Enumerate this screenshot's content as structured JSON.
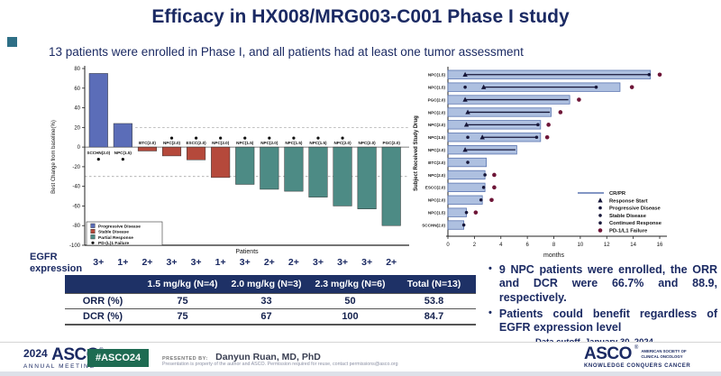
{
  "slide": {
    "title": "Efficacy in HX008/MRG003-C001 Phase I study",
    "subtitle": "13 patients were enrolled in Phase I, and all patients had at least one tumor assessment"
  },
  "colors": {
    "navy": "#1b2a63",
    "bar_progressive": "#5b6db8",
    "bar_stable": "#b5493b",
    "bar_partial": "#4d8b85",
    "swimmer_bar_fill": "#aec0e0",
    "swimmer_bar_stroke": "#5a74b0",
    "marker_dark": "#17173a",
    "marker_fail": "#6e1638",
    "table_header_bg": "#1e3166",
    "badge_green": "#1e6b52",
    "accent_square": "#2e6f86"
  },
  "chart_data": [
    {
      "type": "bar",
      "subtype": "waterfall",
      "title": "",
      "xlabel": "Patients",
      "ylabel": "Best Change from baseline(%)",
      "ylim": [
        -100,
        80
      ],
      "yticks": [
        80,
        60,
        40,
        20,
        0,
        -20,
        -40,
        -60,
        -80,
        -100
      ],
      "reference_lines": [
        20,
        -30
      ],
      "categories": [
        "SCCHN(2.0)",
        "NPC(1.5)",
        "BTC(2.0)",
        "NPC(2.0)",
        "ESCC(2.0)",
        "NPC(2.0)",
        "NPC(1.5)",
        "NPC(2.0)",
        "NPC(1.5)",
        "NPC(1.5)",
        "NPC(2.0)",
        "NPC(2.0)",
        "PGC(2.0)"
      ],
      "values": [
        75,
        24,
        -4,
        -9,
        -13,
        -31,
        -38,
        -43,
        -45,
        -51,
        -60,
        -63,
        -80
      ],
      "status": [
        "pd",
        "pd",
        "sd",
        "sd",
        "sd",
        "sd",
        "pr",
        "pr",
        "pr",
        "pr",
        "pr",
        "pr",
        "pr"
      ],
      "pdl1_dot": [
        "below",
        "below",
        null,
        "above",
        "above",
        "above",
        "above",
        "above",
        "above",
        "above",
        "above",
        null,
        null
      ],
      "legend": [
        {
          "swatch": "pd",
          "label": "Progressive Disease"
        },
        {
          "swatch": "sd",
          "label": "Stable Disease"
        },
        {
          "swatch": "pr",
          "label": "Partial Response"
        },
        {
          "swatch": "dot",
          "label": "PD-(L)1 Failure"
        }
      ],
      "egfr": {
        "label": "EGFR expression",
        "values": [
          "3+",
          "1+",
          "2+",
          "3+",
          "3+",
          "1+",
          "3+",
          "2+",
          "2+",
          "3+",
          "3+",
          "3+",
          "2+"
        ]
      }
    },
    {
      "type": "bar",
      "subtype": "swimmer",
      "title": "",
      "xlabel": "months",
      "ylabel": "Subject Received Study Drug",
      "xlim": [
        0,
        16
      ],
      "xticks": [
        0,
        2,
        4,
        6,
        8,
        10,
        12,
        14,
        16
      ],
      "rows": [
        {
          "label": "NPC(1.5)",
          "bar": 15.3,
          "line": [
            1.3,
            15.2
          ],
          "markers": [
            {
              "t": "start",
              "x": 1.3
            },
            {
              "t": "dot",
              "x": 15.2
            },
            {
              "t": "fail",
              "x": 16.0
            }
          ]
        },
        {
          "label": "NPC(1.5)",
          "bar": 13.0,
          "line": [
            2.7,
            11.2
          ],
          "markers": [
            {
              "t": "dot",
              "x": 1.3
            },
            {
              "t": "start",
              "x": 2.7
            },
            {
              "t": "dot",
              "x": 11.2
            },
            {
              "t": "fail",
              "x": 13.9
            }
          ]
        },
        {
          "label": "PGC(2.0)",
          "bar": 9.2,
          "line": [
            1.3,
            9.1
          ],
          "markers": [
            {
              "t": "start",
              "x": 1.3
            },
            {
              "t": "fail",
              "x": 9.9
            }
          ]
        },
        {
          "label": "NPC(2.0)",
          "bar": 7.8,
          "line": [
            1.5,
            7.7
          ],
          "markers": [
            {
              "t": "start",
              "x": 1.5
            },
            {
              "t": "fail",
              "x": 8.5
            }
          ]
        },
        {
          "label": "NPC(2.0)",
          "bar": 7.0,
          "line": [
            1.4,
            6.8
          ],
          "markers": [
            {
              "t": "start",
              "x": 1.4
            },
            {
              "t": "dot",
              "x": 6.8
            },
            {
              "t": "fail",
              "x": 7.6
            }
          ]
        },
        {
          "label": "NPC(1.5)",
          "bar": 7.0,
          "line": [
            2.6,
            6.7
          ],
          "markers": [
            {
              "t": "dot",
              "x": 1.5
            },
            {
              "t": "start",
              "x": 2.6
            },
            {
              "t": "dot",
              "x": 6.7
            },
            {
              "t": "fail",
              "x": 7.5
            }
          ]
        },
        {
          "label": "NPC(2.0)",
          "bar": 5.2,
          "line": [
            1.3,
            5.1
          ],
          "markers": [
            {
              "t": "start",
              "x": 1.3
            }
          ]
        },
        {
          "label": "BTC(2.0)",
          "bar": 2.9,
          "line": null,
          "markers": [
            {
              "t": "dot",
              "x": 1.5
            }
          ]
        },
        {
          "label": "NPC(2.0)",
          "bar": 2.8,
          "line": null,
          "markers": [
            {
              "t": "dot",
              "x": 2.8
            },
            {
              "t": "fail",
              "x": 3.5
            }
          ]
        },
        {
          "label": "ESCC(2.0)",
          "bar": 2.8,
          "line": null,
          "markers": [
            {
              "t": "dot",
              "x": 2.7
            },
            {
              "t": "fail",
              "x": 3.5
            }
          ]
        },
        {
          "label": "NPC(2.0)",
          "bar": 2.6,
          "line": null,
          "markers": [
            {
              "t": "dot",
              "x": 2.5
            },
            {
              "t": "fail",
              "x": 3.3
            }
          ]
        },
        {
          "label": "NPC(1.5)",
          "bar": 1.4,
          "line": null,
          "markers": [
            {
              "t": "dot",
              "x": 1.4
            },
            {
              "t": "fail",
              "x": 2.1
            }
          ]
        },
        {
          "label": "SCCHN(2.0)",
          "bar": 1.2,
          "line": null,
          "markers": [
            {
              "t": "dot",
              "x": 1.2
            }
          ]
        }
      ],
      "legend": [
        {
          "t": "line",
          "label": "CR/PR"
        },
        {
          "t": "start",
          "label": "Response Start"
        },
        {
          "t": "dot",
          "label": "Progressive Disease"
        },
        {
          "t": "dot",
          "label": "Stable Disease"
        },
        {
          "t": "dot",
          "label": "Continued Response"
        },
        {
          "t": "fail",
          "label": "PD-1/L1 Failure"
        }
      ]
    }
  ],
  "table": {
    "columns": [
      "",
      "1.5 mg/kg (N=4)",
      "2.0 mg/kg (N=3)",
      "2.3 mg/kg (N=6)",
      "Total (N=13)"
    ],
    "rows": [
      [
        "ORR (%)",
        "75",
        "33",
        "50",
        "53.8"
      ],
      [
        "DCR (%)",
        "75",
        "67",
        "100",
        "84.7"
      ]
    ]
  },
  "bullets": [
    "9 NPC patients were enrolled, the ORR and DCR were 66.7% and 88.9, respectively.",
    "Patients could benefit regardless of EGFR expression level"
  ],
  "notes": {
    "data_cutoff": "Data cutoff. January 30, 2024"
  },
  "footer": {
    "year": "2024",
    "asco": "ASCO",
    "annual_meeting": "ANNUAL MEETING",
    "hashtag": "#ASCO24",
    "presented_by_label": "PRESENTED BY:",
    "presenter": "Danyun Ruan, MD, PhD",
    "disclaimer": "Presentation is property of the author and ASCO. Permission required for reuse, contact permissions@asco.org",
    "asco_right": "ASCO",
    "asco_right_sub1": "AMERICAN SOCIETY OF",
    "asco_right_sub2": "CLINICAL ONCOLOGY",
    "tagline": "KNOWLEDGE CONQUERS CANCER"
  }
}
